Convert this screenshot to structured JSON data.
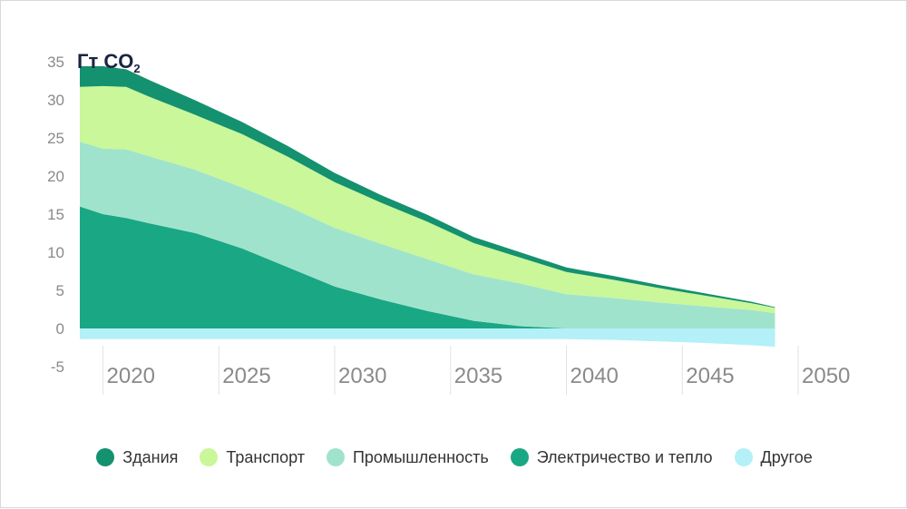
{
  "chart_data": {
    "type": "area",
    "unit_label": "Гт CO",
    "unit_sub": "2",
    "y_ticks": [
      "35",
      "30",
      "25",
      "20",
      "15",
      "10",
      "5",
      "0",
      "-5"
    ],
    "x_ticks": [
      "2020",
      "2025",
      "2030",
      "2035",
      "2040",
      "2045",
      "2050"
    ],
    "ylim": [
      -5,
      35
    ],
    "xlim": [
      2019,
      2050
    ],
    "x": [
      2019,
      2020,
      2021,
      2022,
      2024,
      2026,
      2028,
      2030,
      2032,
      2034,
      2036,
      2038,
      2040,
      2042,
      2044,
      2046,
      2048,
      2049
    ],
    "series": [
      {
        "name": "Другое",
        "color": "#b3f0f7",
        "values": [
          -1.4,
          -1.4,
          -1.4,
          -1.4,
          -1.4,
          -1.4,
          -1.4,
          -1.4,
          -1.4,
          -1.4,
          -1.4,
          -1.4,
          -1.4,
          -1.5,
          -1.7,
          -1.9,
          -2.2,
          -2.4
        ]
      },
      {
        "name": "Электричество и тепло",
        "color": "#1aa784",
        "values": [
          16.0,
          15.0,
          14.5,
          13.8,
          12.5,
          10.5,
          8.0,
          5.5,
          3.8,
          2.3,
          1.0,
          0.3,
          0.0,
          0.0,
          0.0,
          0.0,
          0.0,
          0.0
        ]
      },
      {
        "name": "Промышленность",
        "color": "#a0e3cc",
        "values": [
          8.5,
          8.6,
          9.0,
          8.8,
          8.3,
          8.0,
          8.0,
          7.7,
          7.3,
          6.8,
          6.1,
          5.6,
          4.5,
          4.0,
          3.4,
          2.9,
          2.4,
          2.0
        ]
      },
      {
        "name": "Транспорт",
        "color": "#c9f799",
        "values": [
          7.2,
          8.2,
          8.2,
          7.8,
          7.2,
          7.0,
          6.5,
          6.0,
          5.4,
          4.9,
          4.1,
          3.4,
          2.9,
          2.4,
          1.9,
          1.4,
          0.9,
          0.7
        ]
      },
      {
        "name": "Здания",
        "color": "#14916f",
        "values": [
          2.7,
          2.6,
          2.3,
          2.2,
          1.9,
          1.6,
          1.4,
          1.2,
          1.0,
          0.9,
          0.8,
          0.7,
          0.6,
          0.5,
          0.4,
          0.3,
          0.2,
          0.1
        ]
      }
    ],
    "legend_order": [
      4,
      3,
      2,
      1,
      0
    ],
    "legend_position": "bottom",
    "grid": "vertical"
  }
}
